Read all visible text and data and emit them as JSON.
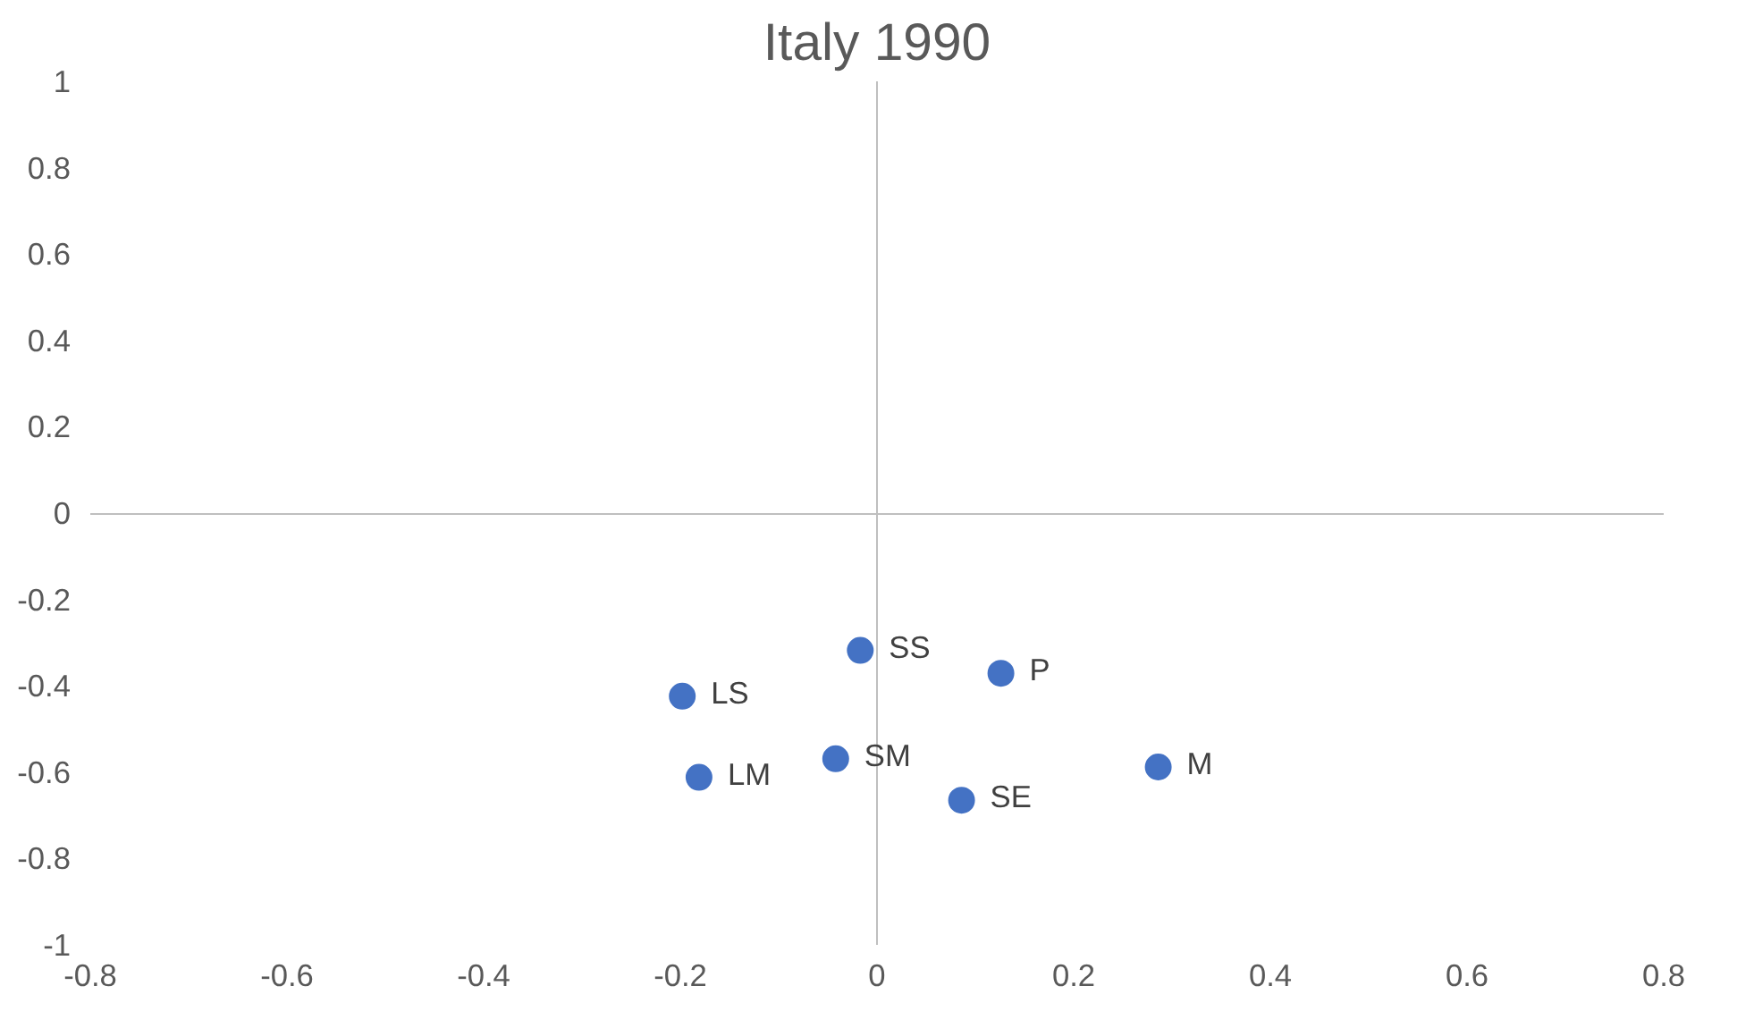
{
  "chart_data": {
    "type": "scatter",
    "title": "Italy 1990",
    "x": [
      -0.017,
      0.126,
      -0.198,
      -0.042,
      0.286,
      -0.181,
      0.086
    ],
    "series": [
      {
        "color": "#4472c4",
        "values": [
          -0.318,
          -0.371,
          -0.424,
          -0.569,
          -0.588,
          -0.612,
          -0.665
        ]
      }
    ],
    "annotations": [
      {
        "text": "SS",
        "x": -0.017,
        "y": -0.318
      },
      {
        "text": "P",
        "x": 0.126,
        "y": -0.371
      },
      {
        "text": "LS",
        "x": -0.198,
        "y": -0.424
      },
      {
        "text": "SM",
        "x": -0.042,
        "y": -0.569
      },
      {
        "text": "M",
        "x": 0.286,
        "y": -0.588
      },
      {
        "text": "LM",
        "x": -0.181,
        "y": -0.612
      },
      {
        "text": "SE",
        "x": 0.086,
        "y": -0.665
      }
    ],
    "xlim": [
      -0.8,
      0.8
    ],
    "ylim": [
      -1,
      1
    ],
    "xticks": [
      -0.8,
      -0.6,
      -0.4,
      -0.2,
      0,
      0.2,
      0.4,
      0.6,
      0.8
    ],
    "yticks": [
      -1,
      -0.8,
      -0.6,
      -0.4,
      -0.2,
      0,
      0.2,
      0.4,
      0.6,
      0.8,
      1
    ],
    "marker": "circle"
  }
}
